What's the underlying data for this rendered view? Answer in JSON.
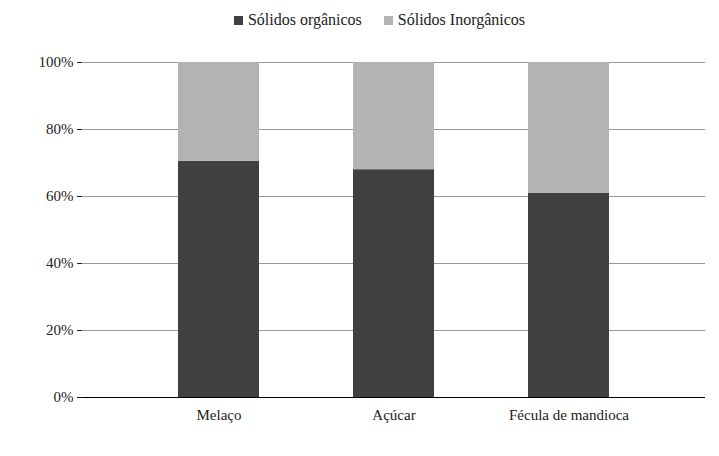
{
  "chart_data": {
    "type": "bar",
    "stacked": true,
    "categories": [
      "Melaço",
      "Açúcar",
      "Fécula de mandioca"
    ],
    "series": [
      {
        "name": "Sólidos orgânicos",
        "color": "#404040",
        "values": [
          70.5,
          68,
          61
        ]
      },
      {
        "name": "Sólidos Inorgânicos",
        "color": "#b3b3b3",
        "values": [
          29.5,
          32,
          39
        ]
      }
    ],
    "ylim": [
      0,
      100
    ],
    "yticks": [
      {
        "value": 0,
        "label": "0%"
      },
      {
        "value": 20,
        "label": "20%"
      },
      {
        "value": 40,
        "label": "40%"
      },
      {
        "value": 60,
        "label": "60%"
      },
      {
        "value": 80,
        "label": "80%"
      },
      {
        "value": 100,
        "label": "100%"
      }
    ],
    "grid": true,
    "legend": "top"
  }
}
